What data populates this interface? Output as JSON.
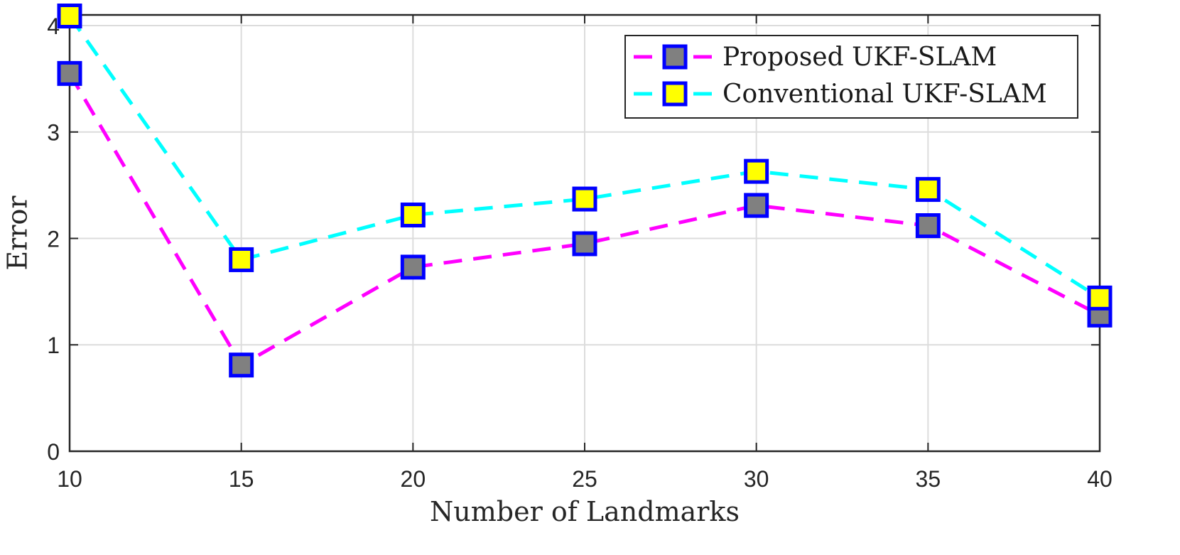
{
  "chart_data": {
    "type": "line",
    "title": "",
    "xlabel": "Number of Landmarks",
    "ylabel": "Error",
    "x": [
      10,
      15,
      20,
      25,
      30,
      35,
      40
    ],
    "xlim": [
      10,
      40
    ],
    "ylim": [
      0,
      4.1
    ],
    "xticks": [
      "10",
      "15",
      "20",
      "25",
      "30",
      "35",
      "40"
    ],
    "yticks": [
      "0",
      "1",
      "2",
      "3",
      "4"
    ],
    "grid": true,
    "legend_position": "top-right",
    "series": [
      {
        "name": "Proposed UKF-SLAM",
        "values": [
          3.55,
          0.81,
          1.73,
          1.95,
          2.31,
          2.12,
          1.28
        ],
        "line_color": "#ff00ff",
        "line_style": "dashed",
        "marker": "square",
        "marker_face": "#808080",
        "marker_edge": "#0000ff"
      },
      {
        "name": "Conventional UKF-SLAM",
        "values": [
          4.09,
          1.8,
          2.22,
          2.37,
          2.63,
          2.46,
          1.44
        ],
        "line_color": "#00ffff",
        "line_style": "dashed",
        "marker": "square",
        "marker_face": "#ffff00",
        "marker_edge": "#0000ff"
      }
    ]
  }
}
